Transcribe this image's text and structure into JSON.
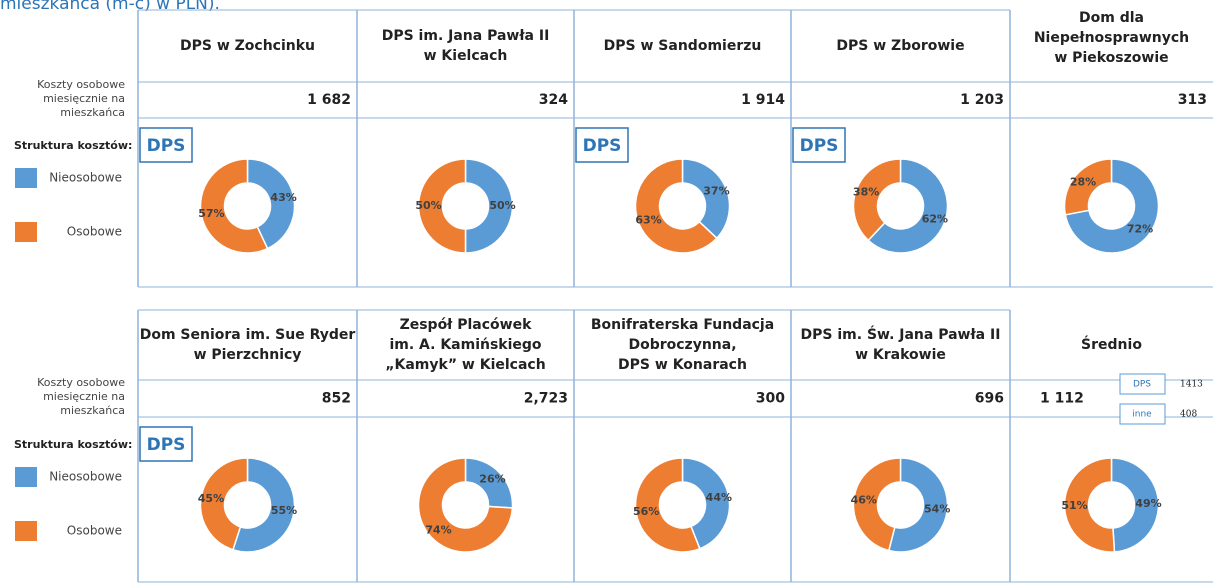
{
  "heading": "mieszkańca (m-c) w PLN).",
  "groups": [
    {
      "cost_label": [
        "Koszty osobowe",
        "miesięcznie na",
        "mieszkańca"
      ],
      "structure_label": "Struktura kosztów:",
      "legend": [
        {
          "name": "Nieosobowe",
          "color": "#5b9bd5"
        },
        {
          "name": "Osobowe",
          "color": "#ed7d31"
        }
      ],
      "panels": [
        {
          "name": [
            "DPS w Zochcinku"
          ],
          "cost": "1 682",
          "badge": "DPS",
          "pie": {
            "values": [
              43,
              57
            ],
            "value_labels": [
              "43%",
              "57%"
            ]
          }
        },
        {
          "name": [
            "DPS im. Jana Pawła II",
            "w Kielcach"
          ],
          "cost": "324",
          "pie": {
            "values": [
              50,
              50
            ],
            "value_labels": [
              "50%",
              "50%"
            ]
          }
        },
        {
          "name": [
            "DPS w Sandomierzu"
          ],
          "cost": "1 914",
          "badge": "DPS",
          "pie": {
            "values": [
              37,
              63
            ],
            "value_labels": [
              "37%",
              "63%"
            ]
          }
        },
        {
          "name": [
            "DPS w Zborowie"
          ],
          "cost": "1 203",
          "badge": "DPS",
          "pie": {
            "values": [
              62,
              38
            ],
            "value_labels": [
              "62%",
              "38%"
            ]
          }
        },
        {
          "name": [
            "Dom dla",
            "Niepełnosprawnych",
            "w Piekoszowie"
          ],
          "cost": "313",
          "pie": {
            "values": [
              72,
              28
            ],
            "value_labels": [
              "72%",
              "28%"
            ]
          }
        }
      ]
    },
    {
      "cost_label": [
        "Koszty osobowe",
        "miesięcznie na",
        "mieszkańca"
      ],
      "structure_label": "Struktura kosztów:",
      "legend": [
        {
          "name": "Nieosobowe",
          "color": "#5b9bd5"
        },
        {
          "name": "Osobowe",
          "color": "#ed7d31"
        }
      ],
      "panels": [
        {
          "name": [
            "Dom Seniora im. Sue Ryder",
            "w Pierzchnicy"
          ],
          "cost": "852",
          "badge": "DPS",
          "pie": {
            "values": [
              55,
              45
            ],
            "value_labels": [
              "55%",
              "45%"
            ]
          }
        },
        {
          "name": [
            "Zespół Placówek",
            "im. A. Kamińskiego",
            "„Kamyk” w Kielcach"
          ],
          "cost": "2,723",
          "pie": {
            "values": [
              26,
              74
            ],
            "value_labels": [
              "26%",
              "74%"
            ]
          }
        },
        {
          "name": [
            "Bonifraterska Fundacja",
            "Dobroczynna,",
            "DPS w Konarach"
          ],
          "cost": "300",
          "pie": {
            "values": [
              44,
              56
            ],
            "value_labels": [
              "44%",
              "56%"
            ]
          }
        },
        {
          "name": [
            "DPS im. Św. Jana Pawła II",
            "w Krakowie"
          ],
          "cost": "696",
          "pie": {
            "values": [
              54,
              46
            ],
            "value_labels": [
              "54%",
              "46%"
            ]
          }
        },
        {
          "name": [
            "Średnio"
          ],
          "cost": "1 112",
          "inset": [
            {
              "label": "DPS",
              "value": "1413"
            },
            {
              "label": "inne",
              "value": "408"
            }
          ],
          "pie": {
            "values": [
              49,
              51
            ],
            "value_labels": [
              "49%",
              "51%"
            ]
          }
        }
      ]
    }
  ]
}
